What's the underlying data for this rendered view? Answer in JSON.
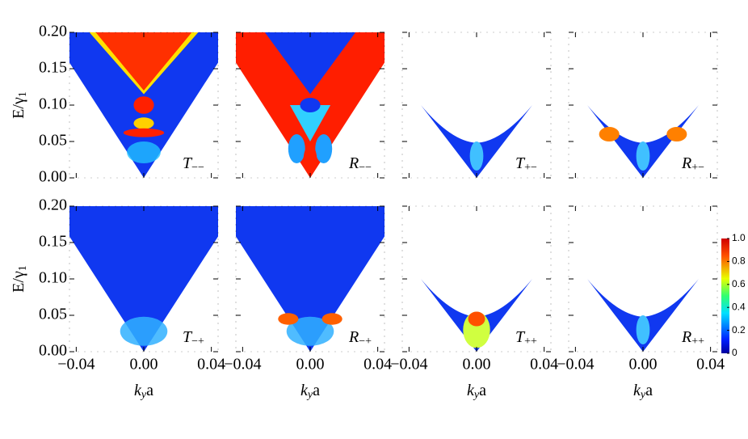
{
  "chart_data": {
    "type": "heatmap-grid",
    "x_label": {
      "main": "k",
      "sub": "y",
      "suffix": "a"
    },
    "y_label": {
      "main": "E/γ",
      "sub": "1"
    },
    "xlim": [
      -0.044,
      0.044
    ],
    "ylim": [
      0,
      0.2
    ],
    "xticks": [
      {
        "value": -0.04,
        "label": "−0.04"
      },
      {
        "value": 0,
        "label": "0.00"
      },
      {
        "value": 0.04,
        "label": "0.04"
      }
    ],
    "yticks": [
      {
        "value": 0,
        "label": "0.00"
      },
      {
        "value": 0.05,
        "label": "0.05"
      },
      {
        "value": 0.1,
        "label": "0.10"
      },
      {
        "value": 0.15,
        "label": "0.15"
      },
      {
        "value": 0.2,
        "label": "0.20"
      }
    ],
    "panels": [
      {
        "symbol": "T",
        "sub": "−−"
      },
      {
        "symbol": "R",
        "sub": "−−"
      },
      {
        "symbol": "T",
        "sub": "+−"
      },
      {
        "symbol": "R",
        "sub": "+−"
      },
      {
        "symbol": "T",
        "sub": "−+"
      },
      {
        "symbol": "R",
        "sub": "−+"
      },
      {
        "symbol": "T",
        "sub": "++"
      },
      {
        "symbol": "R",
        "sub": "++"
      }
    ],
    "colorbar": {
      "colormap": "jet",
      "lim": [
        0,
        1
      ],
      "ticks": [
        0,
        0.2,
        0.4,
        0.6,
        0.8,
        {
          "value": 1,
          "label": "1.0"
        }
      ]
    }
  }
}
